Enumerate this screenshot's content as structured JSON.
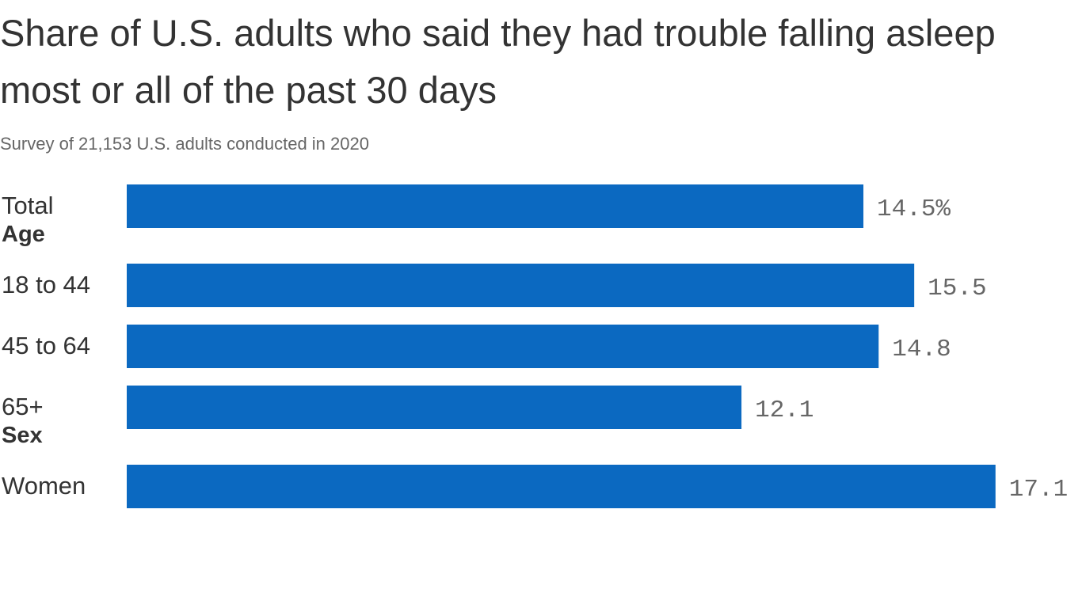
{
  "chart_data": {
    "type": "bar",
    "orientation": "horizontal",
    "title": "Share of U.S. adults who said they had trouble falling asleep most or all of the past 30 days",
    "subtitle": "Survey of 21,153 U.S. adults conducted in 2020",
    "bar_color": "#0b69c1",
    "groups": [
      {
        "label": "",
        "rows": [
          {
            "label": "Total",
            "value": 14.5,
            "display": "14.5%"
          }
        ]
      },
      {
        "label": "Age",
        "rows": [
          {
            "label": "18 to 44",
            "value": 15.5,
            "display": "15.5"
          },
          {
            "label": "45 to 64",
            "value": 14.8,
            "display": "14.8"
          },
          {
            "label": "65+",
            "value": 12.1,
            "display": "12.1"
          }
        ]
      },
      {
        "label": "Sex",
        "rows": [
          {
            "label": "Women",
            "value": 17.1,
            "display": "17.1"
          }
        ]
      }
    ]
  }
}
